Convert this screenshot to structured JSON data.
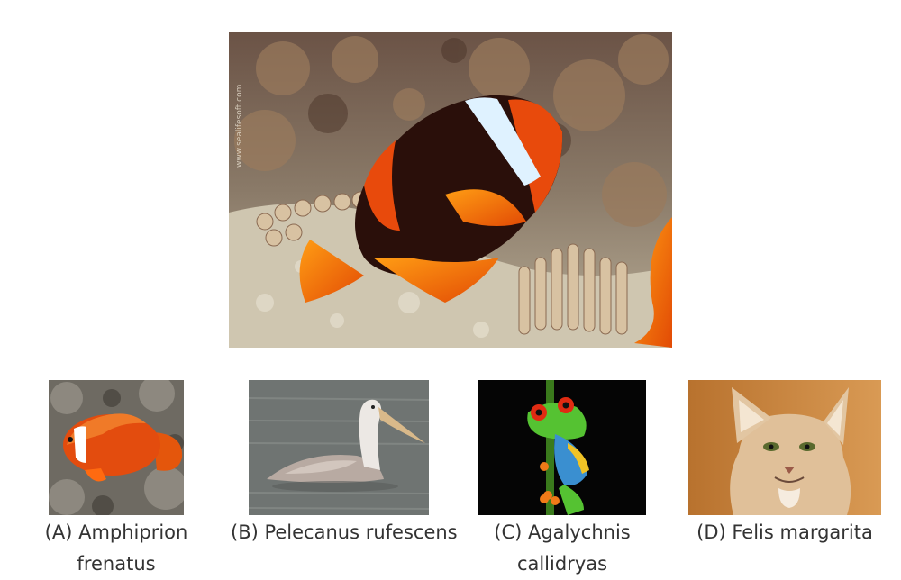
{
  "question_image": {
    "subject": "tomato-clownfish",
    "watermark": "www.sealifesoft.com",
    "colors": {
      "body": "#e84a0c",
      "dark": "#2a0f0a",
      "stripe": "#dff2ff",
      "fin": "#ff9d14"
    }
  },
  "choices": [
    {
      "label": "(A) Amphiprion",
      "label_line2": "frenatus",
      "icon": "clownfish-photo"
    },
    {
      "label": "(B) Pelecanus rufescens",
      "icon": "pelican-photo"
    },
    {
      "label": "(C) Agalychnis",
      "label_line2": "callidryas",
      "icon": "tree-frog-photo"
    },
    {
      "label": "(D) Felis margarita",
      "icon": "sand-cat-photo"
    }
  ]
}
